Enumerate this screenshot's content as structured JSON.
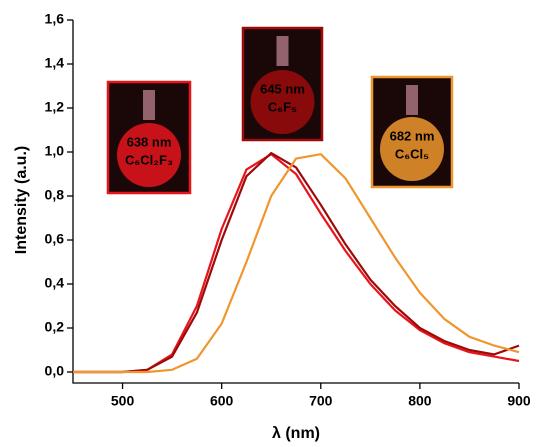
{
  "chart_data": {
    "type": "line",
    "x_label": "λ (nm)",
    "y_label": "Intensity (a.u.)",
    "x": [
      450,
      475,
      500,
      525,
      550,
      575,
      600,
      625,
      650,
      675,
      700,
      725,
      750,
      775,
      800,
      825,
      850,
      875,
      900
    ],
    "series": [
      {
        "name": "638 nm",
        "label": "C₆Cl₂F₃",
        "color": "#e8141c",
        "values": [
          0,
          0,
          0,
          0.01,
          0.08,
          0.3,
          0.65,
          0.92,
          0.99,
          0.9,
          0.72,
          0.55,
          0.4,
          0.28,
          0.19,
          0.13,
          0.09,
          0.07,
          0.05
        ]
      },
      {
        "name": "645 nm",
        "label": "C₆F₅",
        "color": "#9e0a0a",
        "values": [
          0,
          0,
          0,
          0.01,
          0.07,
          0.27,
          0.6,
          0.89,
          0.995,
          0.93,
          0.76,
          0.58,
          0.42,
          0.3,
          0.2,
          0.14,
          0.1,
          0.08,
          0.12
        ]
      },
      {
        "name": "682 nm",
        "label": "C₆Cl₅",
        "color": "#f0962e",
        "values": [
          0,
          0,
          0,
          0,
          0.01,
          0.06,
          0.22,
          0.5,
          0.8,
          0.97,
          0.99,
          0.88,
          0.7,
          0.52,
          0.36,
          0.24,
          0.16,
          0.12,
          0.09
        ]
      }
    ],
    "xlim": [
      450,
      900
    ],
    "ylim": [
      -0.05,
      1.6
    ],
    "xticks": [
      500,
      600,
      700,
      800,
      900
    ],
    "yticks": [
      {
        "value": 0,
        "label": "0,0"
      },
      {
        "value": 0.2,
        "label": "0,2"
      },
      {
        "value": 0.4,
        "label": "0,4"
      },
      {
        "value": 0.6,
        "label": "0,6"
      },
      {
        "value": 0.8,
        "label": "0,8"
      },
      {
        "value": 1.0,
        "label": "1,0"
      },
      {
        "value": 1.2,
        "label": "1,2"
      },
      {
        "value": 1.4,
        "label": "1,4"
      },
      {
        "value": 1.6,
        "label": "1,6"
      }
    ]
  }
}
